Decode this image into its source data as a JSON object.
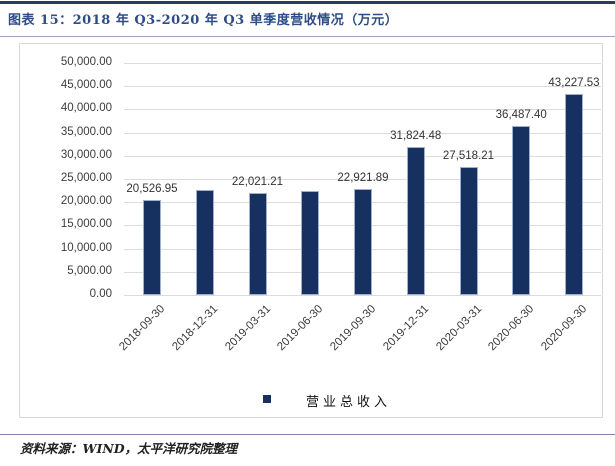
{
  "header": {
    "title": "图表 15：2018 年 Q3-2020 年 Q3 单季度营收情况（万元）"
  },
  "footer": {
    "source": "资料来源：WIND，太平洋研究院整理"
  },
  "colors": {
    "bar": "#16305f",
    "bar_border": "#9fb0cf",
    "title_text": "#2e4d86",
    "top_rule": "#2b3c63",
    "sub_rule": "#98a4bf",
    "footer_rule": "#7e8aa9",
    "gridline": "#dcdcdc",
    "tick_text": "#3c3c3c"
  },
  "chart_data": {
    "type": "bar",
    "title": "图表 15：2018 年 Q3-2020 年 Q3 单季度营收情况（万元）",
    "xlabel": "",
    "ylabel": "",
    "unit": "万元",
    "ylim": [
      0,
      50000
    ],
    "grid": true,
    "legend_position": "bottom",
    "categories": [
      "2018-09-30",
      "2018-12-31",
      "2019-03-31",
      "2019-06-30",
      "2019-09-30",
      "2019-12-31",
      "2020-03-31",
      "2020-06-30",
      "2020-09-30"
    ],
    "series": [
      {
        "name": "营业总收入",
        "values": [
          20526.95,
          22560,
          22021.21,
          22440,
          22921.89,
          31824.48,
          27518.21,
          36487.4,
          43227.53
        ]
      }
    ],
    "data_labels": [
      "20,526.95",
      null,
      "22,021.21",
      null,
      "22,921.89",
      "31,824.48",
      "27,518.21",
      "36,487.40",
      "43,227.53"
    ],
    "y_ticks": [
      "0.00",
      "5,000.00",
      "10,000.00",
      "15,000.00",
      "20,000.00",
      "25,000.00",
      "30,000.00",
      "35,000.00",
      "40,000.00",
      "45,000.00",
      "50,000.00"
    ]
  }
}
